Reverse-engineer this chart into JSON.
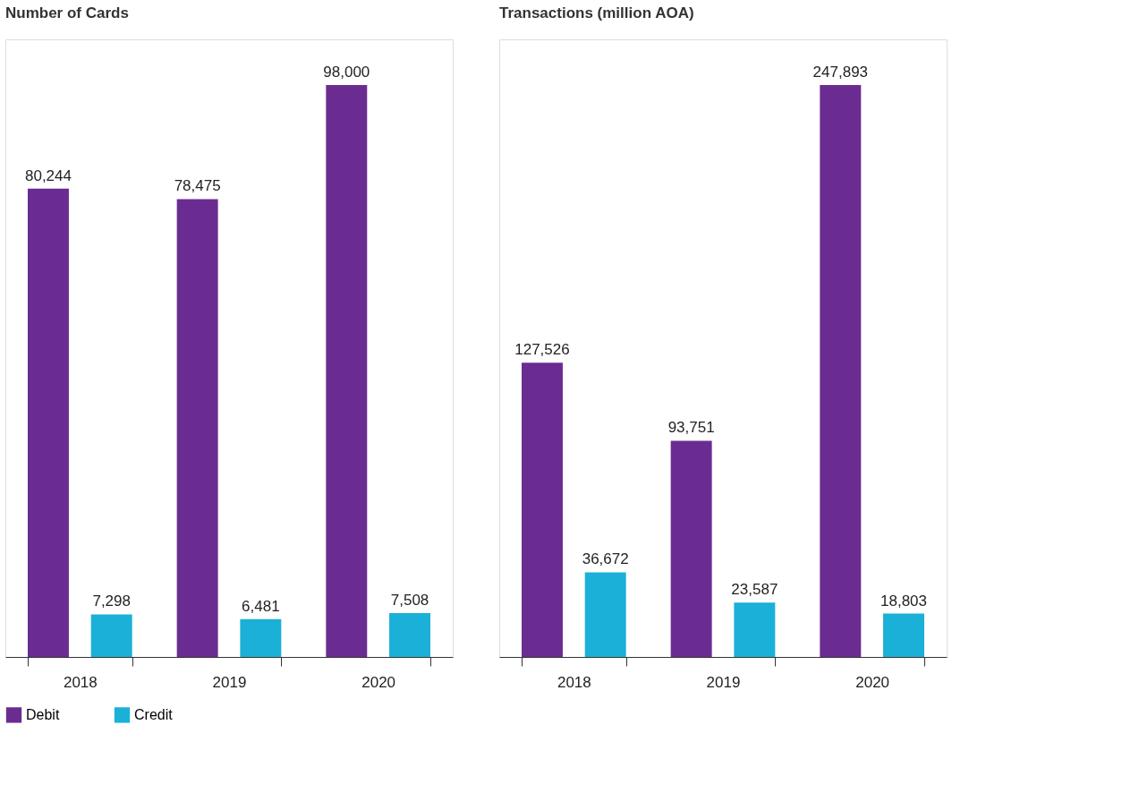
{
  "chart_data": [
    {
      "type": "bar",
      "title": "Number of Cards",
      "categories": [
        "2018",
        "2019",
        "2020"
      ],
      "legend": "bottom",
      "series": [
        {
          "name": "Debit",
          "color": "#6b2c91",
          "values": [
            80244,
            78475,
            98000
          ],
          "value_labels": [
            "80,244",
            "78,475",
            "98,000"
          ]
        },
        {
          "name": "Credit",
          "color": "#1ab0d8",
          "values": [
            7298,
            6481,
            7508
          ],
          "value_labels": [
            "7,298",
            "6,481",
            "7,508"
          ]
        }
      ]
    },
    {
      "type": "bar",
      "title": "Transactions (million AOA)",
      "categories": [
        "2018",
        "2019",
        "2020"
      ],
      "legend": "bottom",
      "series": [
        {
          "name": "Debit",
          "color": "#6b2c91",
          "values": [
            127526,
            93751,
            247893
          ],
          "value_labels": [
            "127,526",
            "93,751",
            "247,893"
          ]
        },
        {
          "name": "Credit",
          "color": "#1ab0d8",
          "values": [
            36672,
            23587,
            18803
          ],
          "value_labels": [
            "36,672",
            "23,587",
            "18,803"
          ]
        }
      ]
    }
  ]
}
